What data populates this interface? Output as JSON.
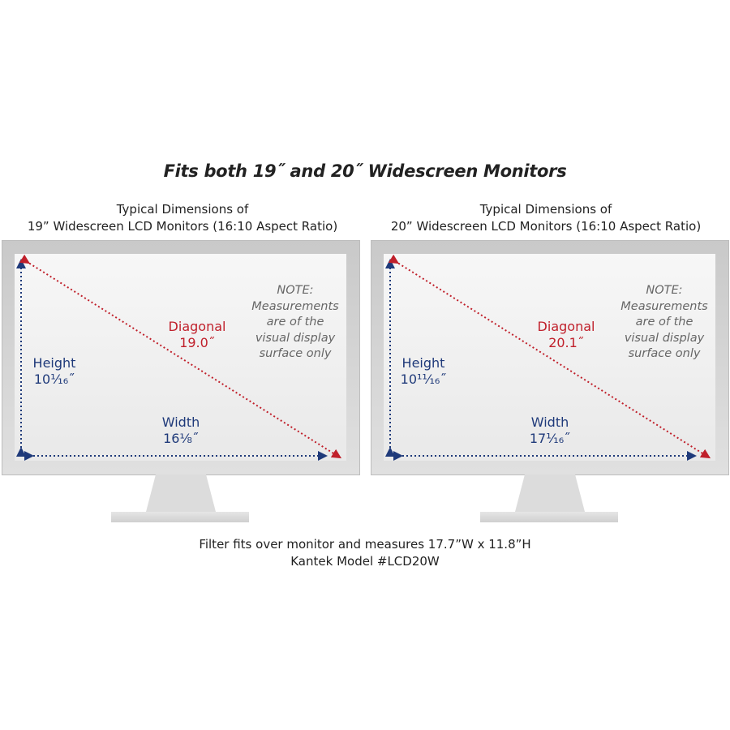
{
  "title": "Fits both 19˝ and 20˝ Widescreen Monitors",
  "monitors": [
    {
      "caption_line1": "Typical Dimensions of",
      "caption_line2": "19” Widescreen LCD Monitors (16:10 Aspect Ratio)",
      "diagonal_label": "Diagonal",
      "diagonal_value": "19.0˝",
      "height_label": "Height",
      "height_value": "10¹⁄₁₆˝",
      "width_label": "Width",
      "width_value": "16⅛˝",
      "note": [
        "NOTE:",
        "Measurements",
        "are of the",
        "visual display",
        "surface only"
      ]
    },
    {
      "caption_line1": "Typical Dimensions of",
      "caption_line2": "20” Widescreen LCD Monitors (16:10 Aspect Ratio)",
      "diagonal_label": "Diagonal",
      "diagonal_value": "20.1˝",
      "height_label": "Height",
      "height_value": "10¹¹⁄₁₆˝",
      "width_label": "Width",
      "width_value": "17¹⁄₁₆˝",
      "note": [
        "NOTE:",
        "Measurements",
        "are of the",
        "visual display",
        "surface only"
      ]
    }
  ],
  "footer_line1": "Filter fits over monitor and measures 17.7”W x 11.8”H",
  "footer_line2": "Kantek Model #LCD20W",
  "colors": {
    "dimension_blue": "#1f3a7a",
    "diagonal_red": "#c0202b",
    "note_gray": "#666666"
  }
}
